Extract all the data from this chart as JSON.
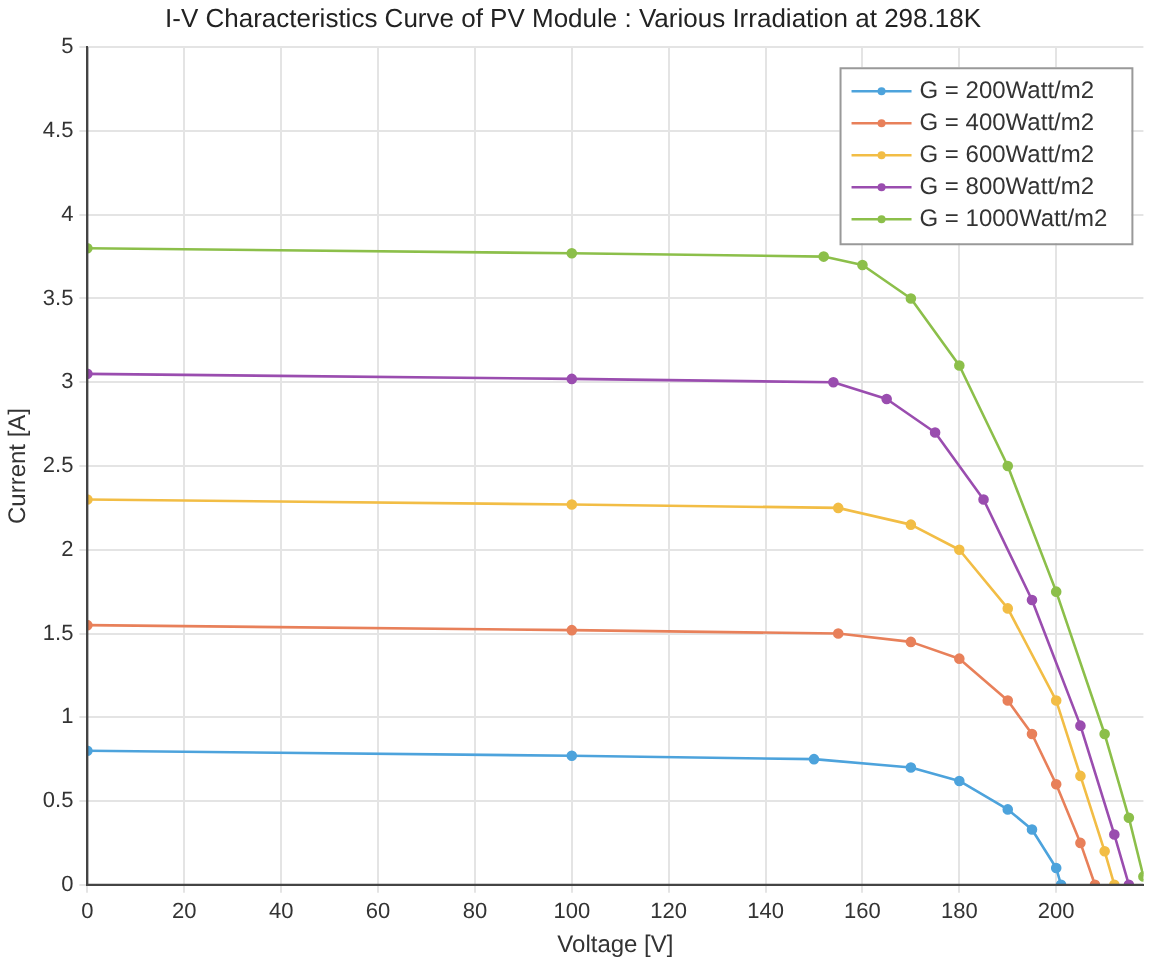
{
  "chart_data": {
    "type": "line",
    "title": "I-V Characteristics Curve of PV Module : Various Irradiation at 298.18K",
    "xlabel": "Voltage [V]",
    "ylabel": "Current [A]",
    "xlim": [
      0,
      218
    ],
    "xticks": [
      0,
      20,
      40,
      60,
      80,
      100,
      120,
      140,
      160,
      180,
      200
    ],
    "ylim": [
      0,
      5
    ],
    "yticks": [
      0,
      0.5,
      1,
      1.5,
      2,
      2.5,
      3,
      3.5,
      4,
      4.5,
      5
    ],
    "grid": true,
    "legend": "top right",
    "marker": "circle",
    "line_style": "solid",
    "series": [
      {
        "name": "G = 200Watt/m2",
        "color": "#4da3dc",
        "x": [
          0,
          100,
          150,
          170,
          180,
          190,
          195,
          200,
          201
        ],
        "values": [
          0.8,
          0.77,
          0.75,
          0.7,
          0.62,
          0.45,
          0.33,
          0.1,
          0
        ]
      },
      {
        "name": "G = 400Watt/m2",
        "color": "#e8805a",
        "x": [
          0,
          100,
          155,
          170,
          180,
          190,
          195,
          200,
          205,
          208
        ],
        "values": [
          1.55,
          1.52,
          1.5,
          1.45,
          1.35,
          1.1,
          0.9,
          0.6,
          0.25,
          0
        ]
      },
      {
        "name": "G = 600Watt/m2",
        "color": "#f2bd45",
        "x": [
          0,
          100,
          155,
          170,
          180,
          190,
          200,
          205,
          210,
          212
        ],
        "values": [
          2.3,
          2.27,
          2.25,
          2.15,
          2,
          1.65,
          1.1,
          0.65,
          0.2,
          0
        ]
      },
      {
        "name": "G = 800Watt/m2",
        "color": "#9a4daf",
        "x": [
          0,
          100,
          154,
          165,
          175,
          185,
          195,
          205,
          212,
          215
        ],
        "values": [
          3.05,
          3.02,
          3,
          2.9,
          2.7,
          2.3,
          1.7,
          0.95,
          0.3,
          0
        ]
      },
      {
        "name": "G = 1000Watt/m2",
        "color": "#8cbf4a",
        "x": [
          0,
          100,
          152,
          160,
          170,
          180,
          190,
          200,
          210,
          215,
          218
        ],
        "values": [
          3.8,
          3.77,
          3.75,
          3.7,
          3.5,
          3.1,
          2.5,
          1.75,
          0.9,
          0.4,
          0.05
        ]
      }
    ]
  }
}
